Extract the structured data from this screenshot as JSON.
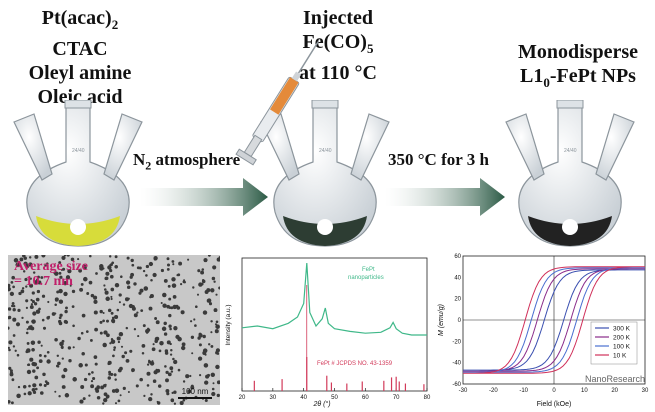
{
  "reagents": [
    "Pt(acac)",
    "CTAC",
    "Oleyl amine",
    "Oleic acid"
  ],
  "reagent_sub": "2",
  "injected": {
    "line1": "Injected",
    "line2_main": "Fe(CO)",
    "line2_sub": "5",
    "line3": "at 110 °C"
  },
  "product": {
    "line1": "Monodisperse",
    "line2_a": "L1",
    "line2_sub": "0",
    "line2_b": "-FePt NPs"
  },
  "steps": {
    "step1_a": "N",
    "step1_sub": "2",
    "step1_b": " atmosphere",
    "step2": "350 °C for 3 h"
  },
  "flask_label": "24/40",
  "tem": {
    "label_line1": "Average size",
    "label_line2": "= 10.7 nm",
    "scalebar": "100 nm"
  },
  "colors": {
    "flask1_liquid": "#d7dc3a",
    "flask2_liquid": "#2d3d33",
    "flask3_liquid": "#222222",
    "arrow": "#2b5a45",
    "tem_label": "#c0206a",
    "xrd_line": "#3fb889",
    "ref_line": "#d23a5a"
  },
  "chart_data": [
    {
      "type": "line",
      "title": "",
      "legend": [
        "FePt",
        "nanoparticles"
      ],
      "xlabel": "2θ (°)",
      "ylabel": "Intensity (a.u.)",
      "xlim": [
        20,
        80
      ],
      "xticks": [
        20,
        30,
        40,
        50,
        60,
        70,
        80
      ],
      "x": [
        20,
        25,
        30,
        35,
        38,
        40,
        41,
        42,
        44,
        46,
        47,
        48,
        50,
        55,
        60,
        65,
        68,
        69,
        70,
        72,
        75,
        80
      ],
      "y": [
        0.28,
        0.3,
        0.27,
        0.33,
        0.4,
        0.55,
        1.0,
        0.45,
        0.3,
        0.38,
        0.5,
        0.33,
        0.27,
        0.24,
        0.22,
        0.23,
        0.28,
        0.34,
        0.27,
        0.22,
        0.2,
        0.2
      ],
      "reference": {
        "name": "FePt # JCPDS NO. 43-1359",
        "positions": [
          24,
          33,
          41,
          47.5,
          49,
          54,
          59,
          66,
          68.5,
          70,
          71,
          73,
          79
        ],
        "heights": [
          0.3,
          0.35,
          1.0,
          0.45,
          0.25,
          0.22,
          0.28,
          0.3,
          0.4,
          0.42,
          0.28,
          0.22,
          0.2
        ]
      }
    },
    {
      "type": "line",
      "title": "",
      "xlabel": "Field (kOe)",
      "ylabel": "M (emu/g)",
      "xlim": [
        -30,
        30
      ],
      "ylim": [
        -60,
        60
      ],
      "xticks": [
        -30,
        -20,
        -10,
        0,
        10,
        20,
        30
      ],
      "yticks": [
        -60,
        -40,
        -20,
        0,
        20,
        40,
        60
      ],
      "series": [
        {
          "name": "300 K",
          "color": "#3a4fb0",
          "Ms": 47,
          "Hc": 3.2
        },
        {
          "name": "200 K",
          "color": "#8a2c8a",
          "Ms": 48,
          "Hc": 5.5
        },
        {
          "name": "100 K",
          "color": "#4a6fd0",
          "Ms": 49,
          "Hc": 7.5
        },
        {
          "name": "10 K",
          "color": "#d0305a",
          "Ms": 50,
          "Hc": 9.5
        }
      ],
      "watermark": "NanoResearch"
    }
  ]
}
